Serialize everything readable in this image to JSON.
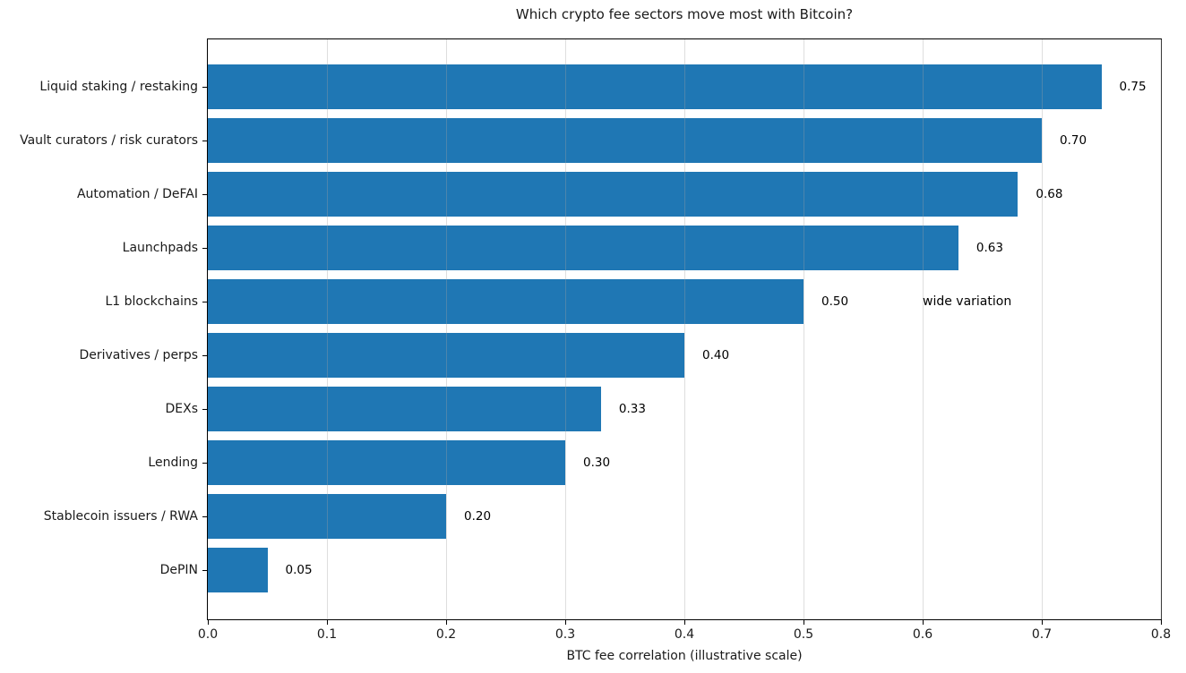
{
  "chart_data": {
    "type": "bar",
    "orientation": "horizontal",
    "title": "Which crypto fee sectors move most with Bitcoin?",
    "xlabel": "BTC fee correlation (illustrative scale)",
    "categories": [
      "Liquid staking / restaking",
      "Vault curators / risk curators",
      "Automation / DeFAI",
      "Launchpads",
      "L1 blockchains",
      "Derivatives / perps",
      "DEXs",
      "Lending",
      "Stablecoin issuers / RWA",
      "DePIN"
    ],
    "values": [
      0.75,
      0.7,
      0.68,
      0.63,
      0.5,
      0.4,
      0.33,
      0.3,
      0.2,
      0.05
    ],
    "value_labels": [
      "0.75",
      "0.70",
      "0.68",
      "0.63",
      "0.50",
      "0.40",
      "0.33",
      "0.30",
      "0.20",
      "0.05"
    ],
    "annotation": {
      "text": "wide variation",
      "category_index": 4,
      "x": 0.6
    },
    "xlim": [
      0.0,
      0.8
    ],
    "xticks": [
      0.0,
      0.1,
      0.2,
      0.3,
      0.4,
      0.5,
      0.6,
      0.7,
      0.8
    ],
    "xtick_labels": [
      "0.0",
      "0.1",
      "0.2",
      "0.3",
      "0.4",
      "0.5",
      "0.6",
      "0.7",
      "0.8"
    ],
    "grid": "x",
    "legend": "none",
    "bar_color": "#1f77b4"
  }
}
